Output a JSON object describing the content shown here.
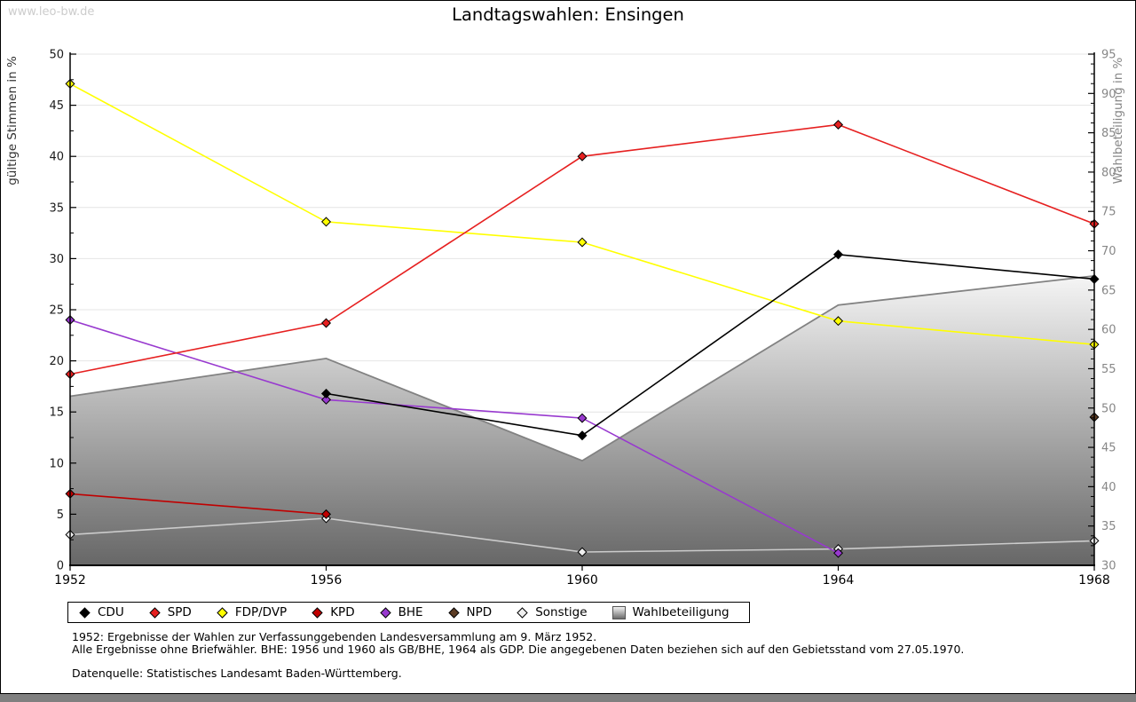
{
  "watermark": "www.leo-bw.de",
  "title": "Landtagswahlen: Ensingen",
  "footnotes": {
    "line1": "1952: Ergebnisse der Wahlen zur Verfassunggebenden Landesversammlung am 9. März 1952.",
    "line2": "Alle Ergebnisse ohne Briefwähler. BHE: 1956 und 1960 als GB/BHE, 1964 als GDP. Die angegebenen Daten beziehen sich auf den Gebietsstand vom 27.05.1970.",
    "source": "Datenquelle: Statistisches Landesamt Baden-Württemberg."
  },
  "chart_data": {
    "type": "line",
    "title": "Landtagswahlen: Ensingen",
    "x": [
      1952,
      1956,
      1960,
      1964,
      1968
    ],
    "ylabel_left": "gültige Stimmen in %",
    "ylabel_right": "Wahlbeteiligung in %",
    "ylim_left": [
      0,
      50
    ],
    "ylim_right": [
      30,
      95
    ],
    "ytick_step": 5,
    "grid": true,
    "legend_position": "bottom",
    "colors": {
      "grid": "#e4e4e4",
      "axis": "#000000",
      "right_axis_text": "#878787",
      "left_axis_text": "#1a1a1a",
      "area_border": "#828282",
      "area_top": "#f5f5f5",
      "area_bottom": "#676767"
    },
    "series": [
      {
        "name": "CDU",
        "color": "#000000",
        "marker": "diamond",
        "axis": "left",
        "values": [
          null,
          16.8,
          12.7,
          30.4,
          28.0
        ]
      },
      {
        "name": "SPD",
        "color": "#e62020",
        "marker": "diamond",
        "axis": "left",
        "values": [
          18.7,
          23.7,
          40.0,
          43.1,
          33.4
        ]
      },
      {
        "name": "FDP/DVP",
        "color": "#ffff00",
        "marker": "diamond",
        "axis": "left",
        "values": [
          47.1,
          33.6,
          31.6,
          23.9,
          21.6
        ]
      },
      {
        "name": "KPD",
        "color": "#c00000",
        "marker": "diamond",
        "axis": "left",
        "values": [
          7.0,
          5.0,
          null,
          null,
          null
        ]
      },
      {
        "name": "BHE",
        "color": "#9839cf",
        "marker": "diamond",
        "axis": "left",
        "values": [
          24.0,
          16.2,
          14.4,
          1.2,
          null
        ]
      },
      {
        "name": "NPD",
        "color": "#5c3c24",
        "marker": "diamond",
        "axis": "left",
        "values": [
          null,
          null,
          null,
          null,
          14.5
        ]
      },
      {
        "name": "Sonstige",
        "color": "#cbcbcb",
        "marker": "diamond",
        "marker_fill": "#efefef",
        "axis": "left",
        "values": [
          3.0,
          4.6,
          1.3,
          1.6,
          2.4
        ]
      },
      {
        "name": "Wahlbeteiligung",
        "type": "area",
        "axis": "right",
        "values": [
          51.5,
          56.3,
          43.3,
          63.1,
          66.8
        ]
      }
    ]
  }
}
